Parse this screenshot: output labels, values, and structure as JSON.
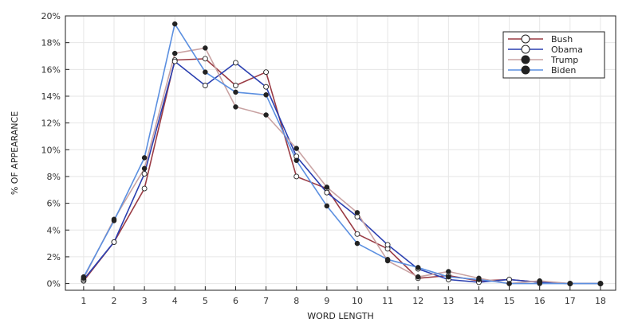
{
  "chart_data": {
    "type": "line",
    "title": "",
    "xlabel": "WORD LENGTH",
    "ylabel": "% OF APPEARANCE",
    "x": [
      1,
      2,
      3,
      4,
      5,
      6,
      7,
      8,
      9,
      10,
      11,
      12,
      13,
      14,
      15,
      16,
      17,
      18
    ],
    "xlim": [
      0.4,
      18.5
    ],
    "ylim": [
      -0.5,
      20
    ],
    "yticks": [
      0,
      2,
      4,
      6,
      8,
      10,
      12,
      14,
      16,
      18,
      20
    ],
    "ytick_format": "{v}%",
    "grid": true,
    "legend_position": "top-right",
    "series": [
      {
        "name": "Bush",
        "color": "#9a3b44",
        "marker": "open-circle",
        "values": [
          0.2,
          3.1,
          7.1,
          16.7,
          16.8,
          14.8,
          15.8,
          8.0,
          7.1,
          3.7,
          2.6,
          0.4,
          0.6,
          0.2,
          0.3,
          0.1,
          0.0,
          0.0
        ]
      },
      {
        "name": "Obama",
        "color": "#2a3fb0",
        "marker": "open-circle",
        "values": [
          0.3,
          3.1,
          8.2,
          16.6,
          14.8,
          16.5,
          14.7,
          9.5,
          6.8,
          5.0,
          2.9,
          1.1,
          0.3,
          0.1,
          0.3,
          0.1,
          0.0,
          0.0
        ]
      },
      {
        "name": "Trump",
        "color": "#c9a3a3",
        "marker": "filled-circle",
        "values": [
          0.4,
          4.8,
          8.6,
          17.2,
          17.6,
          13.2,
          12.6,
          10.1,
          7.2,
          5.3,
          1.7,
          0.5,
          0.9,
          0.4,
          0.0,
          0.2,
          0.0,
          0.0
        ]
      },
      {
        "name": "Biden",
        "color": "#5b8fe0",
        "marker": "filled-circle",
        "values": [
          0.5,
          4.7,
          9.4,
          19.4,
          15.8,
          14.3,
          14.1,
          9.2,
          5.8,
          3.0,
          1.8,
          1.2,
          0.5,
          0.3,
          0.0,
          0.0,
          0.0,
          0.0
        ]
      }
    ]
  }
}
